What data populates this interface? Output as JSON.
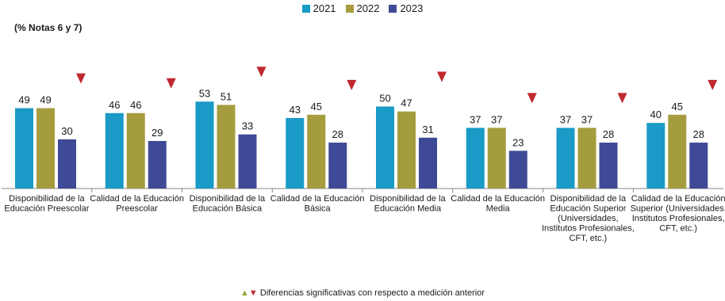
{
  "chart_data": {
    "type": "bar",
    "ylabel": "(% Notas 6 y 7)",
    "ylim": [
      0,
      60
    ],
    "grid": false,
    "legend_position": "top-center",
    "categories": [
      [
        "Disponibilidad de la",
        "Educación Preescolar"
      ],
      [
        "Calidad de la Educación",
        "Preescolar"
      ],
      [
        "Disponibilidad de la",
        "Educación Básica"
      ],
      [
        "Calidad de la Educación",
        "Básica"
      ],
      [
        "Disponibilidad de la",
        "Educación Media"
      ],
      [
        "Calidad de la Educación",
        "Media"
      ],
      [
        "Disponibilidad de la",
        "Educación Superior",
        "(Universidades,",
        "Institutos Profesionales,",
        "CFT, etc.)"
      ],
      [
        "Calidad de la Educación",
        "Superior (Universidades,",
        "Institutos Profesionales,",
        "CFT, etc.)"
      ]
    ],
    "series": [
      {
        "name": "2021",
        "color": "#1a9ac6",
        "values": [
          49,
          46,
          53,
          43,
          50,
          37,
          37,
          40
        ]
      },
      {
        "name": "2022",
        "color": "#a59c3e",
        "values": [
          49,
          46,
          51,
          45,
          47,
          37,
          37,
          45
        ]
      },
      {
        "name": "2023",
        "color": "#3f4a96",
        "values": [
          30,
          29,
          33,
          28,
          31,
          23,
          28,
          28
        ]
      }
    ],
    "significance_markers": [
      "down",
      "down",
      "down",
      "down",
      "down",
      "down",
      "down",
      "down"
    ],
    "marker_colors": {
      "up": "#8fa63a",
      "down": "#c0282f"
    }
  },
  "footnote": {
    "up_symbol": "▲",
    "down_symbol": "▼",
    "text": "Diferencias significativas con respecto a medición anterior"
  }
}
